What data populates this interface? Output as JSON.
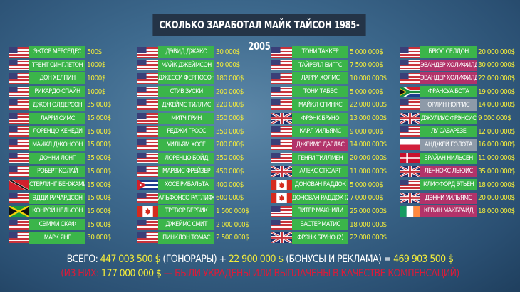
{
  "title": "СКОЛЬКО ЗАРАБОТАЛ МАЙК ТАЙСОН 1985-2005",
  "colors": {
    "win": "#3bb54a",
    "loss": "#b2336a",
    "draw": "#8e9aa8",
    "amount": "#f4ec3a",
    "note": "#d81c3a"
  },
  "columns": [
    [
      {
        "flag": "usa",
        "name": "ЭКТОР МЕРСЕДЕС",
        "amount": "500$",
        "result": "win"
      },
      {
        "flag": "usa",
        "name": "ТРЕНТ СИНГЛЕТОН",
        "amount": "1000$",
        "result": "win"
      },
      {
        "flag": "usa",
        "name": "ДОН ХЕЛПИН",
        "amount": "1000$",
        "result": "win"
      },
      {
        "flag": "usa",
        "name": "РИКАРДО СПАЙН",
        "amount": "1000$",
        "result": "win"
      },
      {
        "flag": "usa",
        "name": "ДЖОН ОЛДЕРСОН",
        "amount": "35 000$",
        "result": "win"
      },
      {
        "flag": "usa",
        "name": "ЛАРРИ СИМС",
        "amount": "15 000$",
        "result": "win"
      },
      {
        "flag": "usa",
        "name": "ЛОРЕНЦО КЕНЕДИ",
        "amount": "15 000$",
        "result": "win"
      },
      {
        "flag": "usa",
        "name": "МАЙКЛ ДЖОНСОН",
        "amount": "15 000$",
        "result": "win"
      },
      {
        "flag": "usa",
        "name": "ДОННИ ЛОНГ",
        "amount": "35 000$",
        "result": "win"
      },
      {
        "flag": "usa",
        "name": "РОБЕРТ КОЛАЙ",
        "amount": "15 000$",
        "result": "win"
      },
      {
        "flag": "trinidad",
        "name": "СТЕРЛИНГ БЕНЖАМИН",
        "amount": "15 000$",
        "result": "win"
      },
      {
        "flag": "usa",
        "name": "ЭДДИ РИЧАРДСОН",
        "amount": "15 000$",
        "result": "win"
      },
      {
        "flag": "jamaica",
        "name": "КОНРОЙ НЕЛЬСОН",
        "amount": "15 000$",
        "result": "win"
      },
      {
        "flag": "usa",
        "name": "СЭММИ СКАФ",
        "amount": "15 000$",
        "result": "win"
      },
      {
        "flag": "usa",
        "name": "МАРК ЯНГ",
        "amount": "30 000$",
        "result": "win"
      }
    ],
    [
      {
        "flag": "usa",
        "name": "ДЭВИД ДЖАКО",
        "amount": "30 000$",
        "result": "win"
      },
      {
        "flag": "usa",
        "name": "МАЙК ДЖЕЙМСОН",
        "amount": "50 000$",
        "result": "win"
      },
      {
        "flag": "usa",
        "name": "ДЖЕССИ ФЕРГЮСОН",
        "amount": "180 000$",
        "result": "win"
      },
      {
        "flag": "usa",
        "name": "СТИВ ЗУСКИ",
        "amount": "200 000$",
        "result": "win"
      },
      {
        "flag": "usa",
        "name": "ДЖЕЙМС ТИЛЛИС",
        "amount": "220 000$",
        "result": "win"
      },
      {
        "flag": "usa",
        "name": "МИТЧ ГРИН",
        "amount": "350 000$",
        "result": "win"
      },
      {
        "flag": "usa",
        "name": "РЕДЖИ ГРОСС",
        "amount": "350 000$",
        "result": "win"
      },
      {
        "flag": "usa",
        "name": "УИЛЬЯМ ХОСЕ",
        "amount": "200 000$",
        "result": "win"
      },
      {
        "flag": "usa",
        "name": "ЛОРЕНЦО БОЙД",
        "amount": "250 000$",
        "result": "win"
      },
      {
        "flag": "usa",
        "name": "МАРВИС ФРЕЙЗЕР",
        "amount": "450 000$",
        "result": "win"
      },
      {
        "flag": "cuba",
        "name": "ХОСЕ РИБАЛЬТА",
        "amount": "400 000$",
        "result": "win"
      },
      {
        "flag": "usa",
        "name": "АЛЬФОНСО РАТЛИФФ",
        "amount": "600 000$",
        "result": "win"
      },
      {
        "flag": "canada",
        "name": "ТРЕВОР БЕРБИК",
        "amount": "1 500 000$",
        "result": "win"
      },
      {
        "flag": "usa",
        "name": "ДЖЕЙМС СМИТ",
        "amount": "2 000 000$",
        "result": "win"
      },
      {
        "flag": "usa",
        "name": "ПИНКЛОН ТОМАС",
        "amount": "2 500 000$",
        "result": "win"
      }
    ],
    [
      {
        "flag": "usa",
        "name": "ТОНИ ТАККЕР",
        "amount": "5 000 000$",
        "result": "win"
      },
      {
        "flag": "usa",
        "name": "ТАЙРЕЛЛ БИГГС",
        "amount": "7 500 000$",
        "result": "win"
      },
      {
        "flag": "usa",
        "name": "ЛАРРИ ХОЛМС",
        "amount": "10 000 000$",
        "result": "win"
      },
      {
        "flag": "usa",
        "name": "ТОНИ ТАББС",
        "amount": "5 000 000$",
        "result": "win"
      },
      {
        "flag": "usa",
        "name": "МАЙКЛ СПИНКС",
        "amount": "22 000 000$",
        "result": "win"
      },
      {
        "flag": "uk",
        "name": "ФРЭНК БРУНО",
        "amount": "13 000 000$",
        "result": "win"
      },
      {
        "flag": "usa",
        "name": "КАРЛ УИЛЬЯМС",
        "amount": "9 000 000$",
        "result": "win"
      },
      {
        "flag": "usa",
        "name": "ДЖЕЙМС ДАГЛАС",
        "amount": "14 000 000$",
        "result": "loss"
      },
      {
        "flag": "usa",
        "name": "ГЕНРИ ТИЛЛМЕН",
        "amount": "20 000 000$",
        "result": "win"
      },
      {
        "flag": "uk",
        "name": "АЛЕКС СТЮАРТ",
        "amount": "11 000 000$",
        "result": "win"
      },
      {
        "flag": "canada",
        "name": "ДОНОВАН РАДДОК",
        "amount": "5 000 000$",
        "result": "win"
      },
      {
        "flag": "canada",
        "name": "ДОНОВАН РАДДОК (2)",
        "amount": "7 000 000$",
        "result": "win"
      },
      {
        "flag": "usa",
        "name": "ПИТЕР МАКНИЛИ",
        "amount": "25 000 000$",
        "result": "win"
      },
      {
        "flag": "usa",
        "name": "БАСТЕР МАТИС",
        "amount": "18 000 000$",
        "result": "win"
      },
      {
        "flag": "uk",
        "name": "ФРЭНК БРУНО (2)",
        "amount": "22 000 000$",
        "result": "win"
      }
    ],
    [
      {
        "flag": "usa",
        "name": "БРЮС СЕЛДОН",
        "amount": "20 000 000$",
        "result": "win"
      },
      {
        "flag": "usa",
        "name": "ЭВАНДЕР ХОЛИФИЛД",
        "amount": "30 000 000$",
        "result": "loss"
      },
      {
        "flag": "usa",
        "name": "ЭВАНДЕР ХОЛИФИЛД (2)",
        "amount": "22 000 000$",
        "result": "loss"
      },
      {
        "flag": "south-africa",
        "name": "ФРАНСУА БОТА",
        "amount": "19 000 000$",
        "result": "win"
      },
      {
        "flag": "usa",
        "name": "ОРЛИН НОРРИС",
        "amount": "14 000 000$",
        "result": "draw"
      },
      {
        "flag": "uk",
        "name": "ДЖУЛИУС ФРЭНСИС",
        "amount": "9 000 000$",
        "result": "win"
      },
      {
        "flag": "usa",
        "name": "ЛУ САВАРЕЗЕ",
        "amount": "12 000 000$",
        "result": "win"
      },
      {
        "flag": "poland",
        "name": "АНДЖЕЙ ГОЛОТА",
        "amount": "16 000 000$",
        "result": "draw"
      },
      {
        "flag": "denmark",
        "name": "БРАЙАН НИЛЬСЕН",
        "amount": "11 000 000$",
        "result": "win"
      },
      {
        "flag": "uk",
        "name": "ЛЕННОКС ЛЬЮИС",
        "amount": "35 000 000$",
        "result": "loss"
      },
      {
        "flag": "usa",
        "name": "КЛИФФОРД ЭТЬЕН",
        "amount": "18 000 000$",
        "result": "win"
      },
      {
        "flag": "uk",
        "name": "ДЭННИ УИЛЬЯМС",
        "amount": "20 000 000$",
        "result": "loss"
      },
      {
        "flag": "ireland",
        "name": "КЕВИН МАКБРАЙД",
        "amount": "18 000 000$",
        "result": "loss"
      }
    ]
  ],
  "total": {
    "label": "ВСЕГО:",
    "fees": "447 003 500 $",
    "fees_label": "(ГОНОРАРЫ) +",
    "bonuses": "22 900 000 $",
    "bonuses_label": "(БОНУСЫ И РЕКЛАМА) =",
    "sum": "469 903 500 $"
  },
  "note": {
    "prefix": "(ИЗ НИХ:",
    "amount": "177 000 000 $",
    "text": "— БЫЛИ УКРАДЕНЫ ИЛИ ВЫПЛАЧЕНЫ В КАЧЕСТВЕ КОМПЕНСАЦИЙ)"
  }
}
